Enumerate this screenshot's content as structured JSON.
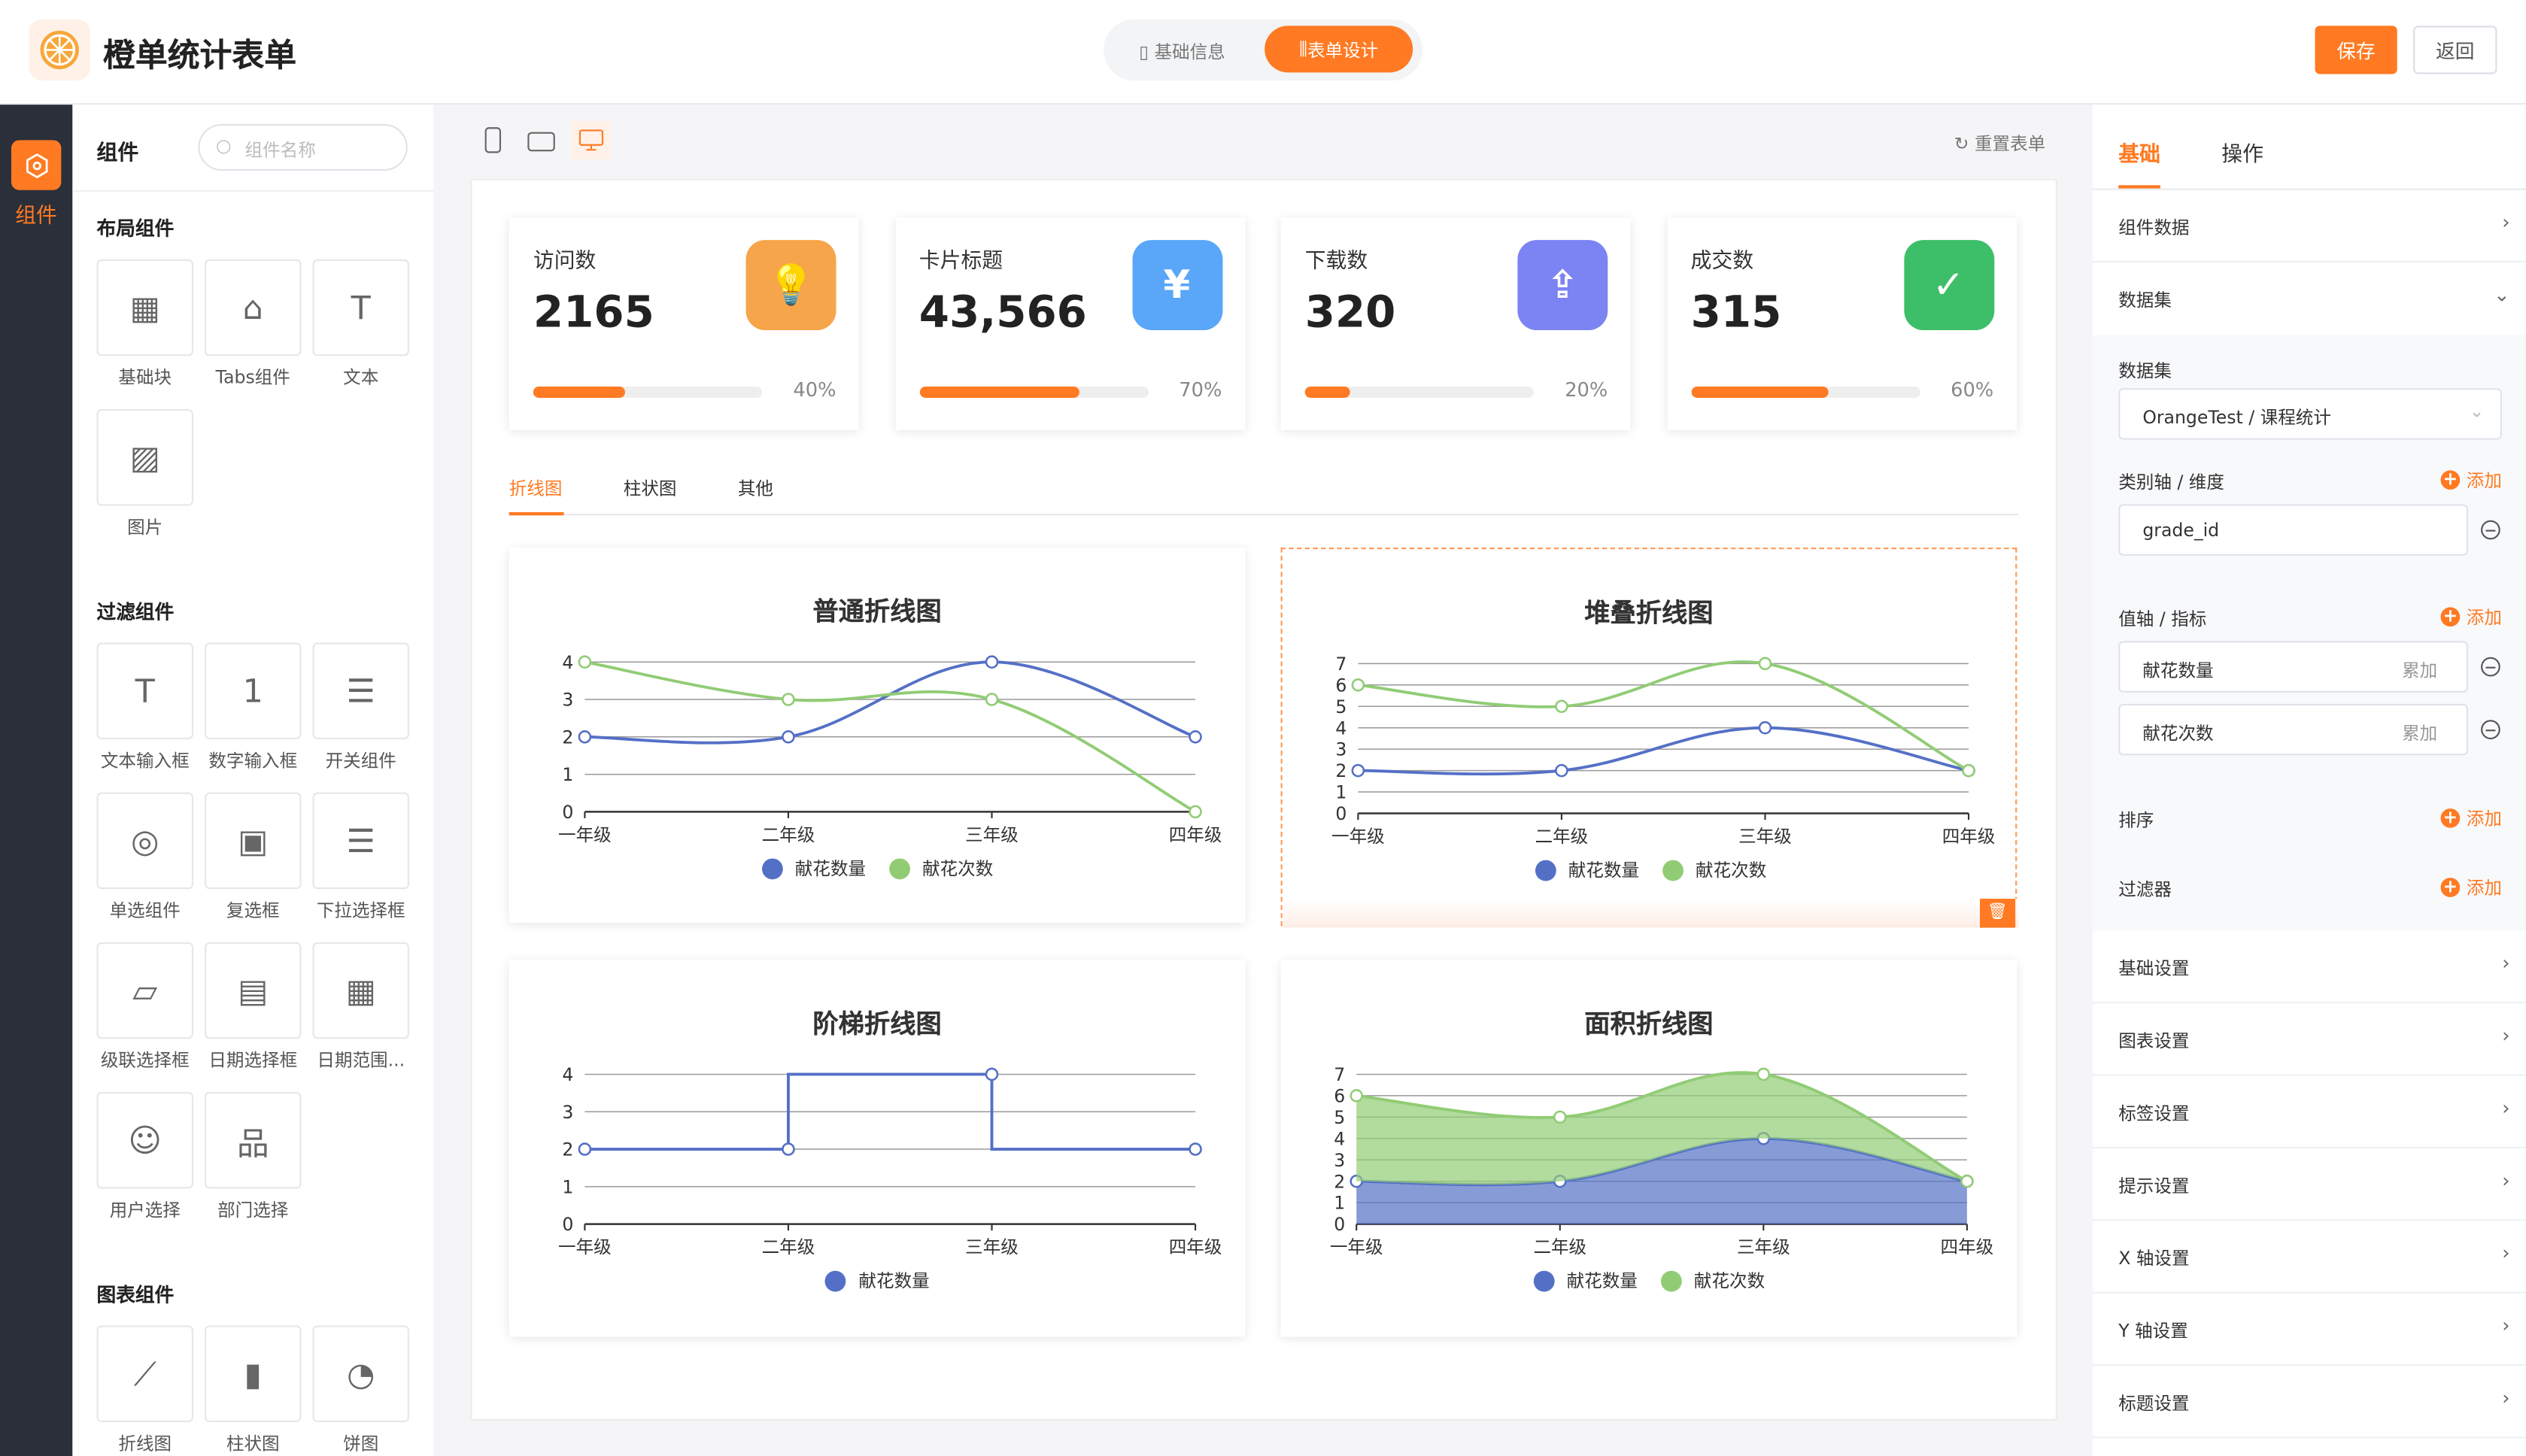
{
  "app": {
    "title": "橙单统计表单",
    "tabs": [
      {
        "label": "基础信息",
        "active": false
      },
      {
        "label": "表单设计",
        "active": true
      }
    ],
    "save_label": "保存",
    "back_label": "返回",
    "accent": "#ff7a22"
  },
  "sidebar": {
    "items": [
      {
        "label": "组件",
        "icon": "component-icon",
        "active": true
      }
    ]
  },
  "component_panel": {
    "title": "组件",
    "search_placeholder": "组件名称",
    "groups": [
      {
        "title": "布局组件",
        "items": [
          "基础块",
          "Tabs组件",
          "文本",
          "图片"
        ]
      },
      {
        "title": "过滤组件",
        "items": [
          "文本输入框",
          "数字输入框",
          "开关组件",
          "单选组件",
          "复选框",
          "下拉选择框",
          "级联选择框",
          "日期选择框",
          "日期范围...",
          "用户选择",
          "部门选择"
        ]
      },
      {
        "title": "图表组件",
        "items": [
          "折线图",
          "柱状图",
          "饼图"
        ]
      }
    ]
  },
  "toolbar": {
    "devices": [
      "mobile",
      "tablet",
      "desktop"
    ],
    "active_device": "desktop",
    "reset_label": "重置表单"
  },
  "stats": [
    {
      "label": "访问数",
      "value": "2165",
      "percent": 40,
      "percent_label": "40%",
      "icon": "lightbulb-icon",
      "color": "#f7a54a"
    },
    {
      "label": "卡片标题",
      "value": "43,566",
      "percent": 70,
      "percent_label": "70%",
      "icon": "yuan-shield-icon",
      "color": "#5aa6f8"
    },
    {
      "label": "下载数",
      "value": "320",
      "percent": 20,
      "percent_label": "20%",
      "icon": "file-upload-icon",
      "color": "#7c83f2"
    },
    {
      "label": "成交数",
      "value": "315",
      "percent": 60,
      "percent_label": "60%",
      "icon": "clipboard-check-icon",
      "color": "#3dbf6a"
    }
  ],
  "chart_tabs": [
    {
      "label": "折线图",
      "active": true
    },
    {
      "label": "柱状图",
      "active": false
    },
    {
      "label": "其他",
      "active": false
    }
  ],
  "chart_data": [
    {
      "type": "line",
      "title": "普通折线图",
      "smooth": true,
      "categories": [
        "一年级",
        "二年级",
        "三年级",
        "四年级"
      ],
      "ylim": [
        0,
        4
      ],
      "yticks": [
        0,
        1,
        2,
        3,
        4
      ],
      "series": [
        {
          "name": "献花数量",
          "values": [
            2,
            2,
            4,
            2
          ],
          "color": "#5470c6"
        },
        {
          "name": "献花次数",
          "values": [
            4,
            3,
            3,
            0
          ],
          "color": "#91cc75"
        }
      ],
      "legend": "bottom",
      "grid": true
    },
    {
      "type": "line",
      "title": "堆叠折线图",
      "smooth": true,
      "stacked": true,
      "selected": true,
      "categories": [
        "一年级",
        "二年级",
        "三年级",
        "四年级"
      ],
      "ylim": [
        0,
        7
      ],
      "yticks": [
        0,
        1,
        2,
        3,
        4,
        5,
        6,
        7
      ],
      "series": [
        {
          "name": "献花数量",
          "values": [
            2,
            2,
            4,
            2
          ],
          "color": "#5470c6"
        },
        {
          "name": "献花次数",
          "values": [
            4,
            3,
            3,
            0
          ],
          "color": "#91cc75"
        }
      ],
      "legend": "bottom",
      "grid": true
    },
    {
      "type": "line",
      "title": "阶梯折线图",
      "step": true,
      "categories": [
        "一年级",
        "二年级",
        "三年级",
        "四年级"
      ],
      "ylim": [
        0,
        4
      ],
      "yticks": [
        0,
        1,
        2,
        3,
        4
      ],
      "series": [
        {
          "name": "献花数量",
          "values": [
            2,
            2,
            4,
            2
          ],
          "color": "#5470c6"
        }
      ],
      "legend": "bottom",
      "grid": true
    },
    {
      "type": "area",
      "title": "面积折线图",
      "smooth": true,
      "stacked": true,
      "categories": [
        "一年级",
        "二年级",
        "三年级",
        "四年级"
      ],
      "ylim": [
        0,
        7
      ],
      "yticks": [
        0,
        1,
        2,
        3,
        4,
        5,
        6,
        7
      ],
      "series": [
        {
          "name": "献花数量",
          "values": [
            2,
            2,
            4,
            2
          ],
          "color": "#5470c6"
        },
        {
          "name": "献花次数",
          "values": [
            4,
            3,
            3,
            0
          ],
          "color": "#91cc75"
        }
      ],
      "legend": "bottom",
      "grid": true
    }
  ],
  "props": {
    "tabs": [
      {
        "label": "基础",
        "active": true
      },
      {
        "label": "操作",
        "active": false
      }
    ],
    "component_data_label": "组件数据",
    "dataset_section_label": "数据集",
    "dataset_label": "数据集",
    "dataset_value": "OrangeTest / 课程统计",
    "category_label": "类别轴 / 维度",
    "add_label": "添加",
    "category_value": "grade_id",
    "value_label": "值轴 / 指标",
    "values": [
      {
        "name": "献花数量",
        "agg": "累加"
      },
      {
        "name": "献花次数",
        "agg": "累加"
      }
    ],
    "sort_label": "排序",
    "filter_label": "过滤器",
    "sections": [
      "基础设置",
      "图表设置",
      "标签设置",
      "提示设置",
      "X 轴设置",
      "Y 轴设置",
      "标题设置"
    ]
  }
}
